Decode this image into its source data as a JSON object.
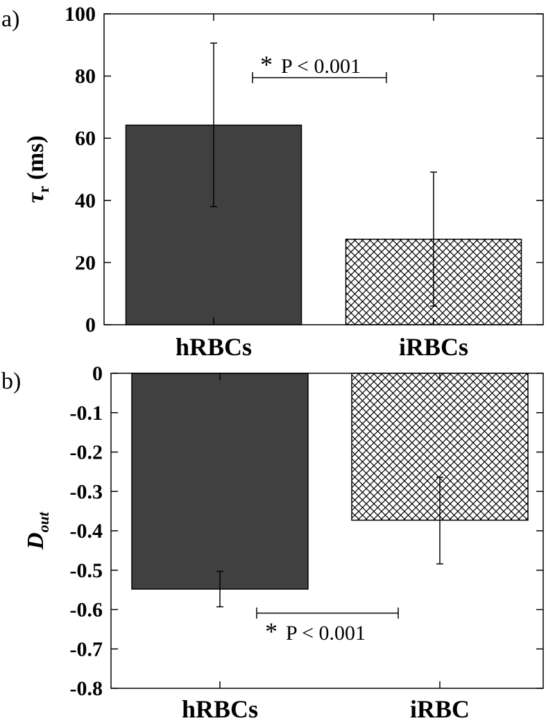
{
  "chart_data": [
    {
      "type": "bar",
      "panel_label": "a)",
      "categories": [
        "hRBCs",
        "iRBCs"
      ],
      "values": [
        64.2,
        27.5
      ],
      "error_high": [
        90.6,
        49.1
      ],
      "error_low": [
        38.0,
        6.0
      ],
      "bar_fill": [
        "#404040",
        "crosshatch"
      ],
      "ylabel_main": "τ",
      "ylabel_sub": "r",
      "ylabel_unit": " (ms)",
      "ylim": [
        0,
        100
      ],
      "yticks": [
        0,
        20,
        40,
        60,
        80,
        100
      ],
      "ytick_labels": [
        "0",
        "20",
        "40",
        "60",
        "80",
        "100"
      ],
      "significance": {
        "star": "*",
        "text": "P < 0.001",
        "bracket_y": 79.5
      }
    },
    {
      "type": "bar",
      "panel_label": "b)",
      "categories": [
        "hRBCs",
        "iRBC"
      ],
      "values": [
        -0.548,
        -0.373
      ],
      "error_high": [
        -0.503,
        -0.264
      ],
      "error_low": [
        -0.593,
        -0.484
      ],
      "bar_fill": [
        "#404040",
        "crosshatch"
      ],
      "ylabel_main": "D",
      "ylabel_sub": "out",
      "ylim": [
        -0.8,
        0
      ],
      "yticks": [
        0,
        -0.1,
        -0.2,
        -0.3,
        -0.4,
        -0.5,
        -0.6,
        -0.7,
        -0.8
      ],
      "ytick_labels": [
        "0",
        "-0.1",
        "-0.2",
        "-0.3",
        "-0.4",
        "-0.5",
        "-0.6",
        "-0.7",
        "-0.8"
      ],
      "significance": {
        "star": "*",
        "text": "P < 0.001",
        "bracket_y": -0.609
      }
    }
  ],
  "colors": {
    "dark_bar": "#404040",
    "hatch_line": "#000000",
    "axis": "#000000"
  }
}
